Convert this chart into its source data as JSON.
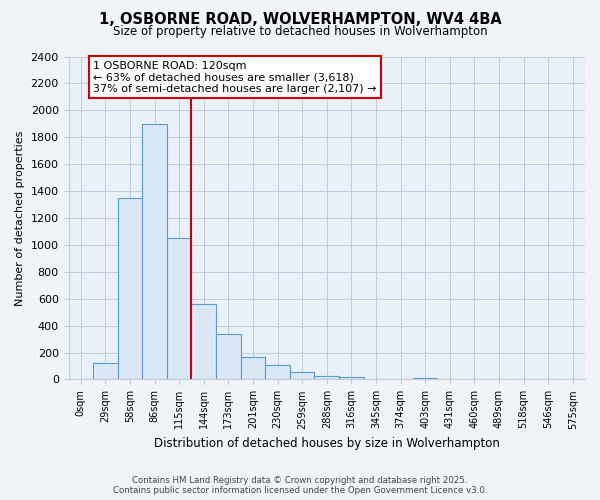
{
  "title": "1, OSBORNE ROAD, WOLVERHAMPTON, WV4 4BA",
  "subtitle": "Size of property relative to detached houses in Wolverhampton",
  "xlabel": "Distribution of detached houses by size in Wolverhampton",
  "ylabel": "Number of detached properties",
  "bar_labels": [
    "0sqm",
    "29sqm",
    "58sqm",
    "86sqm",
    "115sqm",
    "144sqm",
    "173sqm",
    "201sqm",
    "230sqm",
    "259sqm",
    "288sqm",
    "316sqm",
    "345sqm",
    "374sqm",
    "403sqm",
    "431sqm",
    "460sqm",
    "489sqm",
    "518sqm",
    "546sqm",
    "575sqm"
  ],
  "bar_values": [
    0,
    125,
    1350,
    1900,
    1050,
    560,
    335,
    165,
    105,
    55,
    25,
    20,
    0,
    0,
    10,
    0,
    0,
    0,
    5,
    0,
    5
  ],
  "bar_color": "#dae8f5",
  "bar_edge_color": "#5b9bd5",
  "vline_x": 4.5,
  "vline_color": "#cc0000",
  "annotation_title": "1 OSBORNE ROAD: 120sqm",
  "annotation_line1": "← 63% of detached houses are smaller (3,618)",
  "annotation_line2": "37% of semi-detached houses are larger (2,107) →",
  "annotation_box_color": "#ffffff",
  "annotation_box_edge": "#cc0000",
  "ylim": [
    0,
    2400
  ],
  "yticks": [
    0,
    200,
    400,
    600,
    800,
    1000,
    1200,
    1400,
    1600,
    1800,
    2000,
    2200,
    2400
  ],
  "footer1": "Contains HM Land Registry data © Crown copyright and database right 2025.",
  "footer2": "Contains public sector information licensed under the Open Government Licence v3.0.",
  "bg_color": "#f0f4f8",
  "plot_bg_color": "#e8f0f8",
  "grid_color": "#c0ccd8"
}
